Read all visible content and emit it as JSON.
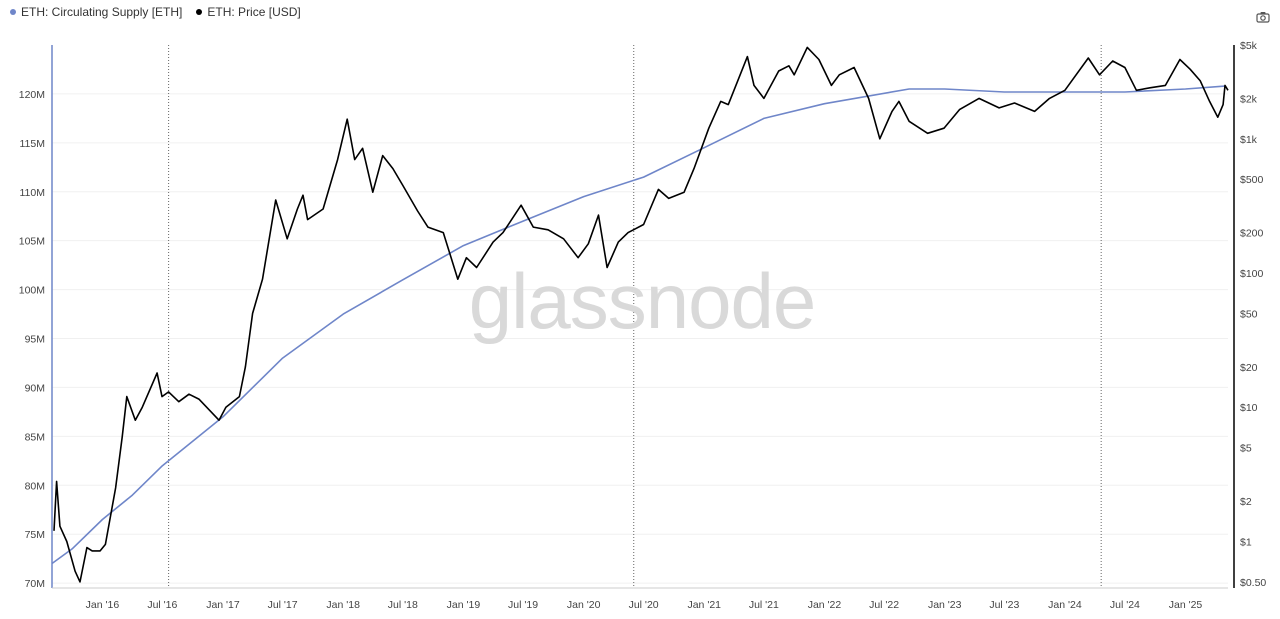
{
  "legend": [
    {
      "label": "ETH: Circulating Supply [ETH]",
      "color": "#6f86c9"
    },
    {
      "label": "ETH: Price [USD]",
      "color": "#000000"
    }
  ],
  "watermark": "glassnode",
  "toolbar": {
    "camera_icon": "camera-icon"
  },
  "chart_data": {
    "type": "line",
    "title": "",
    "x_ticks": [
      "Jan '16",
      "Jul '16",
      "Jan '17",
      "Jul '17",
      "Jan '18",
      "Jul '18",
      "Jan '19",
      "Jul '19",
      "Jan '20",
      "Jul '20",
      "Jan '21",
      "Jul '21",
      "Jan '22",
      "Jul '22",
      "Jan '23",
      "Jul '23",
      "Jan '24",
      "Jul '24",
      "Jan '25"
    ],
    "x_range": [
      "2015-08-01",
      "2025-05-10"
    ],
    "vertical_markers": [
      "2016-07-20",
      "2020-06-01",
      "2024-04-20"
    ],
    "left_axis": {
      "label": "",
      "ticks": [
        "70M",
        "75M",
        "80M",
        "85M",
        "90M",
        "95M",
        "100M",
        "105M",
        "110M",
        "115M",
        "120M"
      ],
      "range": [
        69.5,
        125
      ]
    },
    "right_axis": {
      "label": "",
      "scale": "log",
      "ticks": [
        "$0.50",
        "$1",
        "$2",
        "$5",
        "$10",
        "$20",
        "$50",
        "$100",
        "$200",
        "$500",
        "$1k",
        "$2k",
        "$5k"
      ],
      "range": [
        0.45,
        5000
      ]
    },
    "grid": true,
    "legend_position": "top-left",
    "series": [
      {
        "name": "ETH: Circulating Supply [ETH]",
        "color": "#6f86c9",
        "axis": "left",
        "points": [
          [
            "2015-08-01",
            72.0
          ],
          [
            "2015-10-01",
            73.5
          ],
          [
            "2016-01-01",
            76.5
          ],
          [
            "2016-04-01",
            79.0
          ],
          [
            "2016-07-01",
            82.0
          ],
          [
            "2017-01-01",
            87.0
          ],
          [
            "2017-07-01",
            93.0
          ],
          [
            "2018-01-01",
            97.5
          ],
          [
            "2018-07-01",
            101.0
          ],
          [
            "2019-01-01",
            104.5
          ],
          [
            "2019-07-01",
            107.0
          ],
          [
            "2020-01-01",
            109.5
          ],
          [
            "2020-07-01",
            111.5
          ],
          [
            "2021-01-01",
            114.5
          ],
          [
            "2021-07-01",
            117.5
          ],
          [
            "2022-01-01",
            119.0
          ],
          [
            "2022-09-15",
            120.5
          ],
          [
            "2023-01-01",
            120.5
          ],
          [
            "2023-07-01",
            120.2
          ],
          [
            "2024-01-01",
            120.2
          ],
          [
            "2024-07-01",
            120.2
          ],
          [
            "2025-01-01",
            120.5
          ],
          [
            "2025-05-01",
            120.8
          ]
        ]
      },
      {
        "name": "ETH: Price [USD]",
        "color": "#000000",
        "axis": "right",
        "points": [
          [
            "2015-08-07",
            1.2
          ],
          [
            "2015-08-15",
            2.8
          ],
          [
            "2015-08-25",
            1.3
          ],
          [
            "2015-09-15",
            1.0
          ],
          [
            "2015-10-10",
            0.6
          ],
          [
            "2015-10-25",
            0.5
          ],
          [
            "2015-11-15",
            0.9
          ],
          [
            "2015-12-01",
            0.85
          ],
          [
            "2015-12-25",
            0.85
          ],
          [
            "2016-01-10",
            0.95
          ],
          [
            "2016-02-10",
            2.5
          ],
          [
            "2016-03-01",
            6.0
          ],
          [
            "2016-03-15",
            12.0
          ],
          [
            "2016-04-10",
            8.0
          ],
          [
            "2016-05-01",
            10.0
          ],
          [
            "2016-06-15",
            18.0
          ],
          [
            "2016-06-30",
            12.0
          ],
          [
            "2016-07-20",
            13.0
          ],
          [
            "2016-08-20",
            11.0
          ],
          [
            "2016-09-20",
            12.5
          ],
          [
            "2016-10-20",
            11.5
          ],
          [
            "2016-12-20",
            8.0
          ],
          [
            "2017-01-10",
            10.0
          ],
          [
            "2017-02-20",
            12.0
          ],
          [
            "2017-03-10",
            20.0
          ],
          [
            "2017-04-01",
            50.0
          ],
          [
            "2017-05-01",
            90.0
          ],
          [
            "2017-06-10",
            350.0
          ],
          [
            "2017-07-15",
            180.0
          ],
          [
            "2017-08-15",
            300.0
          ],
          [
            "2017-09-01",
            380.0
          ],
          [
            "2017-09-15",
            250.0
          ],
          [
            "2017-11-01",
            300.0
          ],
          [
            "2017-12-15",
            700.0
          ],
          [
            "2018-01-13",
            1400.0
          ],
          [
            "2018-02-05",
            700.0
          ],
          [
            "2018-03-01",
            850.0
          ],
          [
            "2018-04-01",
            400.0
          ],
          [
            "2018-05-01",
            750.0
          ],
          [
            "2018-06-01",
            600.0
          ],
          [
            "2018-07-01",
            450.0
          ],
          [
            "2018-08-15",
            290.0
          ],
          [
            "2018-09-15",
            220.0
          ],
          [
            "2018-11-01",
            200.0
          ],
          [
            "2018-12-15",
            90.0
          ],
          [
            "2019-01-10",
            130.0
          ],
          [
            "2019-02-10",
            110.0
          ],
          [
            "2019-04-01",
            170.0
          ],
          [
            "2019-05-01",
            200.0
          ],
          [
            "2019-06-25",
            320.0
          ],
          [
            "2019-08-01",
            220.0
          ],
          [
            "2019-09-15",
            210.0
          ],
          [
            "2019-11-01",
            180.0
          ],
          [
            "2019-12-15",
            130.0
          ],
          [
            "2020-01-15",
            165.0
          ],
          [
            "2020-02-15",
            270.0
          ],
          [
            "2020-03-12",
            110.0
          ],
          [
            "2020-04-15",
            170.0
          ],
          [
            "2020-05-15",
            200.0
          ],
          [
            "2020-07-01",
            230.0
          ],
          [
            "2020-08-15",
            420.0
          ],
          [
            "2020-09-15",
            360.0
          ],
          [
            "2020-11-01",
            400.0
          ],
          [
            "2020-12-01",
            600.0
          ],
          [
            "2021-01-15",
            1200.0
          ],
          [
            "2021-02-20",
            1900.0
          ],
          [
            "2021-03-15",
            1800.0
          ],
          [
            "2021-05-12",
            4100.0
          ],
          [
            "2021-06-01",
            2500.0
          ],
          [
            "2021-07-01",
            2000.0
          ],
          [
            "2021-08-15",
            3200.0
          ],
          [
            "2021-09-15",
            3500.0
          ],
          [
            "2021-10-01",
            3000.0
          ],
          [
            "2021-11-10",
            4800.0
          ],
          [
            "2021-12-15",
            3900.0
          ],
          [
            "2022-01-22",
            2500.0
          ],
          [
            "2022-02-15",
            3000.0
          ],
          [
            "2022-04-01",
            3400.0
          ],
          [
            "2022-05-15",
            2000.0
          ],
          [
            "2022-06-18",
            1000.0
          ],
          [
            "2022-07-25",
            1600.0
          ],
          [
            "2022-08-15",
            1900.0
          ],
          [
            "2022-09-15",
            1350.0
          ],
          [
            "2022-11-10",
            1100.0
          ],
          [
            "2022-12-30",
            1200.0
          ],
          [
            "2023-02-15",
            1650.0
          ],
          [
            "2023-04-15",
            2000.0
          ],
          [
            "2023-06-15",
            1700.0
          ],
          [
            "2023-08-01",
            1850.0
          ],
          [
            "2023-10-01",
            1600.0
          ],
          [
            "2023-11-15",
            2000.0
          ],
          [
            "2024-01-01",
            2300.0
          ],
          [
            "2024-03-12",
            4000.0
          ],
          [
            "2024-04-15",
            3000.0
          ],
          [
            "2024-05-25",
            3800.0
          ],
          [
            "2024-07-01",
            3400.0
          ],
          [
            "2024-08-05",
            2300.0
          ],
          [
            "2024-09-15",
            2400.0
          ],
          [
            "2024-11-01",
            2500.0
          ],
          [
            "2024-12-15",
            3900.0
          ],
          [
            "2025-01-15",
            3300.0
          ],
          [
            "2025-02-15",
            2700.0
          ],
          [
            "2025-03-15",
            1900.0
          ],
          [
            "2025-04-09",
            1450.0
          ],
          [
            "2025-04-25",
            1800.0
          ],
          [
            "2025-05-01",
            2500.0
          ],
          [
            "2025-05-10",
            2300.0
          ]
        ]
      }
    ]
  }
}
